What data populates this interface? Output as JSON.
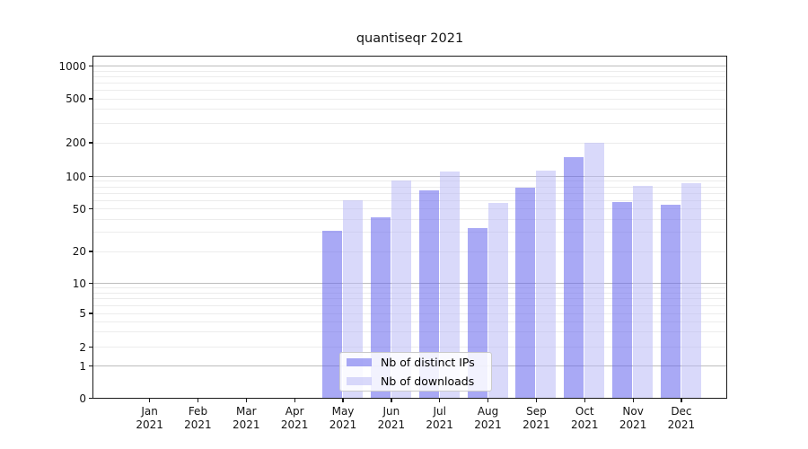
{
  "chart_data": {
    "type": "bar",
    "title": "quantiseqr 2021",
    "categories": [
      "Jan",
      "Feb",
      "Mar",
      "Apr",
      "May",
      "Jun",
      "Jul",
      "Aug",
      "Sep",
      "Oct",
      "Nov",
      "Dec"
    ],
    "year_label": "2021",
    "series": [
      {
        "name": "Nb of distinct IPs",
        "key": "distinct-ips",
        "color": "rgba(104,104,238,0.57)",
        "values": [
          null,
          null,
          null,
          null,
          31,
          42,
          74,
          33,
          78,
          150,
          58,
          55
        ]
      },
      {
        "name": "Nb of downloads",
        "key": "downloads",
        "color": "rgba(186,186,246,0.55)",
        "values": [
          null,
          null,
          null,
          null,
          60,
          91,
          110,
          57,
          112,
          200,
          82,
          86
        ]
      }
    ],
    "yticks": [
      0,
      1,
      2,
      5,
      10,
      20,
      50,
      100,
      200,
      500,
      1000
    ],
    "ylim": [
      0,
      1000
    ],
    "yscale": "symlog",
    "grid": "horizontal; dark lines at powers of 10, faint log minor lines",
    "legend_position": "lower center",
    "colors": {
      "grid_major": "#bdbdbd",
      "grid_minor": "#ececec",
      "axis": "#1a1a1a",
      "background": "#ffffff"
    }
  }
}
